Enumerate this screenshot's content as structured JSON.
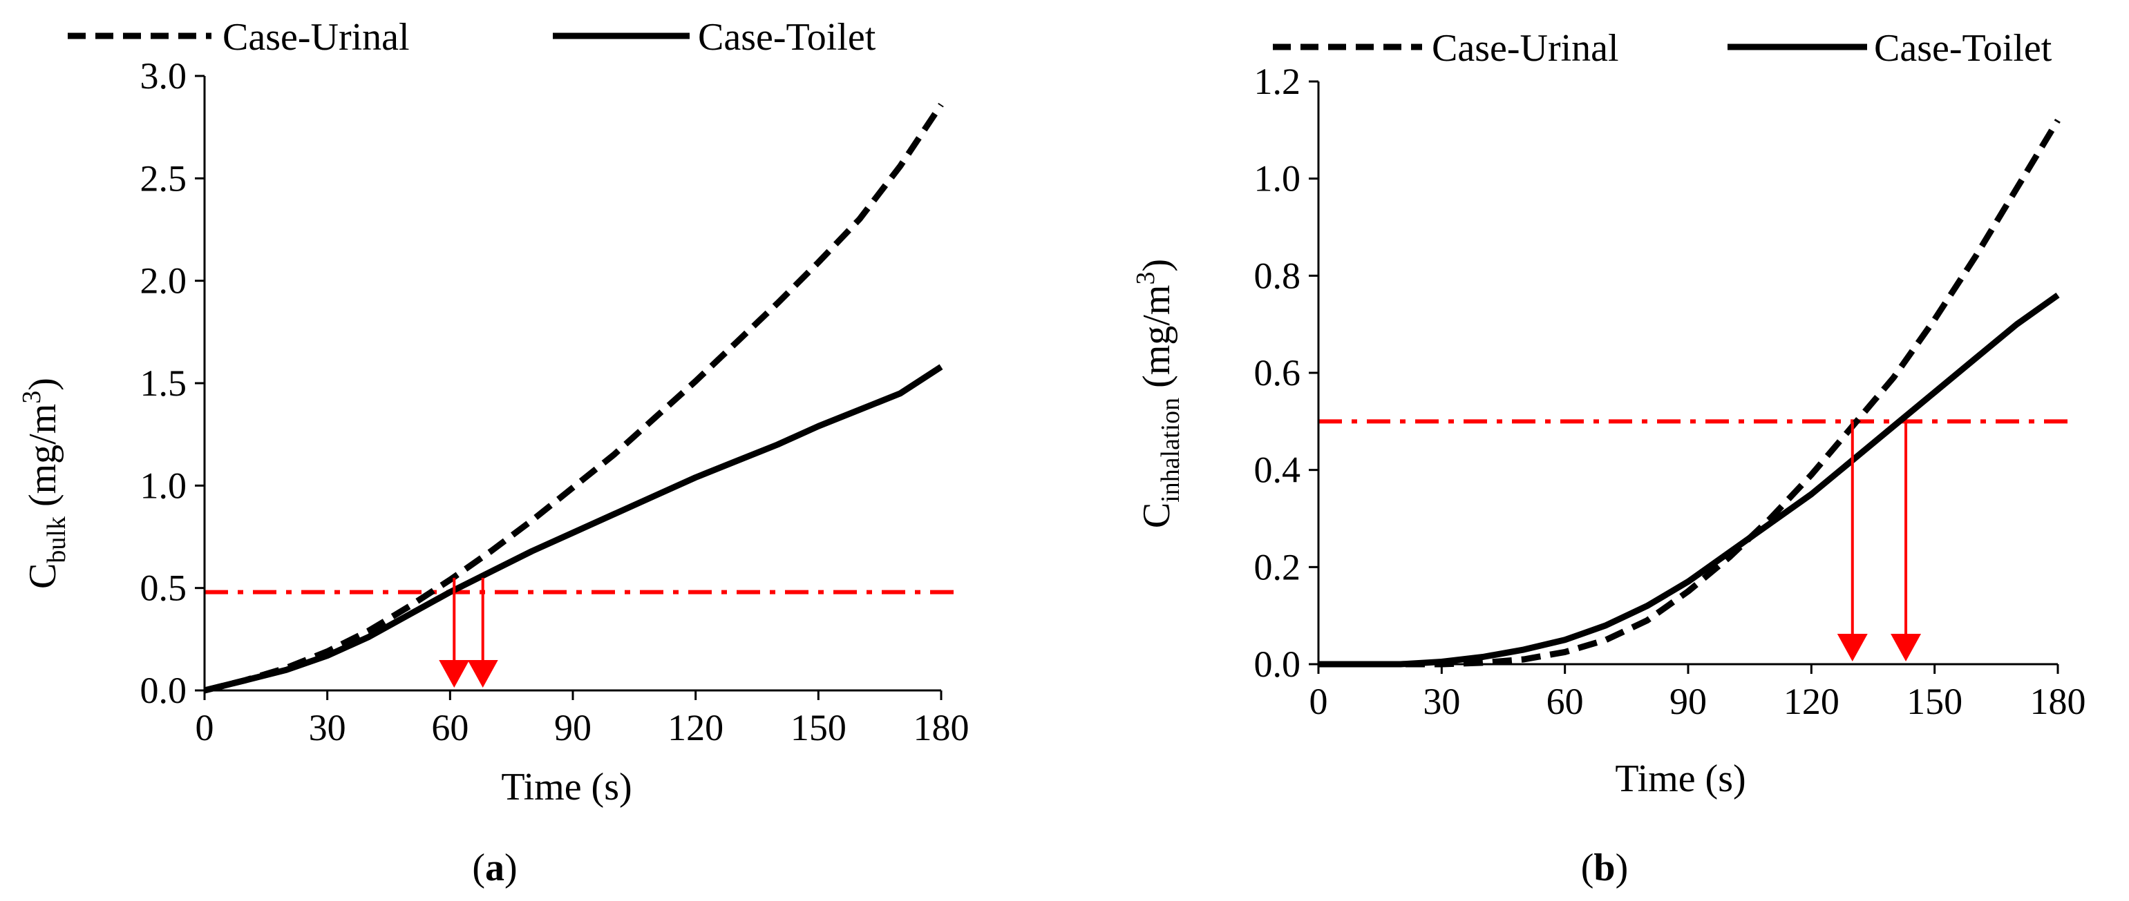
{
  "chart_data": [
    {
      "type": "line",
      "panel_label": {
        "open": "(",
        "letter": "a",
        "close": ")"
      },
      "xlabel": "Time (s)",
      "ylabel": {
        "main": "C",
        "sub": "bulk",
        "unit_pre": " (mg/m",
        "sup": "3",
        "unit_post": ")"
      },
      "xlim": [
        0,
        180
      ],
      "ylim": [
        0,
        3.0
      ],
      "xticks": [
        0,
        30,
        60,
        90,
        120,
        150,
        180
      ],
      "yticks": [
        0.0,
        0.5,
        1.0,
        1.5,
        2.0,
        2.5,
        3.0
      ],
      "ytick_decimals": 1,
      "grid": false,
      "legend_position": "top",
      "series": [
        {
          "name": "Case-Urinal",
          "style": "dashed",
          "color": "#000000",
          "x": [
            0,
            10,
            20,
            30,
            40,
            50,
            60,
            70,
            80,
            90,
            100,
            110,
            120,
            130,
            140,
            150,
            160,
            170,
            180
          ],
          "y": [
            0.0,
            0.05,
            0.11,
            0.19,
            0.29,
            0.41,
            0.54,
            0.68,
            0.83,
            0.99,
            1.15,
            1.33,
            1.51,
            1.7,
            1.89,
            2.09,
            2.3,
            2.56,
            2.86
          ]
        },
        {
          "name": "Case-Toilet",
          "style": "solid",
          "color": "#000000",
          "x": [
            0,
            10,
            20,
            30,
            40,
            50,
            60,
            70,
            80,
            90,
            100,
            110,
            120,
            130,
            140,
            150,
            160,
            170,
            180
          ],
          "y": [
            0.0,
            0.05,
            0.1,
            0.17,
            0.26,
            0.37,
            0.48,
            0.58,
            0.68,
            0.77,
            0.86,
            0.95,
            1.04,
            1.12,
            1.2,
            1.29,
            1.37,
            1.45,
            1.58
          ]
        }
      ],
      "threshold": {
        "y": 0.48,
        "color": "#ff0000",
        "style": "dash-dot"
      },
      "arrows": {
        "color": "#ff0000",
        "x": [
          61,
          68
        ],
        "from_y": 0.55,
        "to_y": 0.0
      }
    },
    {
      "type": "line",
      "panel_label": {
        "open": "(",
        "letter": "b",
        "close": ")"
      },
      "xlabel": "Time (s)",
      "ylabel": {
        "main": "C",
        "sub": "inhalation",
        "unit_pre": " (mg/m",
        "sup": "3",
        "unit_post": ")"
      },
      "xlim": [
        0,
        180
      ],
      "ylim": [
        0,
        1.2
      ],
      "xticks": [
        0,
        30,
        60,
        90,
        120,
        150,
        180
      ],
      "yticks": [
        0.0,
        0.2,
        0.4,
        0.6,
        0.8,
        1.0,
        1.2
      ],
      "ytick_decimals": 1,
      "grid": false,
      "legend_position": "top",
      "series": [
        {
          "name": "Case-Urinal",
          "style": "dashed",
          "color": "#000000",
          "x": [
            0,
            30,
            40,
            50,
            60,
            70,
            80,
            90,
            100,
            110,
            120,
            130,
            140,
            150,
            160,
            170,
            180
          ],
          "y": [
            0.0,
            0.0,
            0.003,
            0.01,
            0.025,
            0.05,
            0.09,
            0.15,
            0.22,
            0.3,
            0.39,
            0.49,
            0.59,
            0.71,
            0.84,
            0.98,
            1.12
          ]
        },
        {
          "name": "Case-Toilet",
          "style": "solid",
          "color": "#000000",
          "x": [
            0,
            20,
            30,
            40,
            50,
            60,
            70,
            80,
            90,
            100,
            110,
            120,
            130,
            140,
            150,
            160,
            170,
            180
          ],
          "y": [
            0.0,
            0.0,
            0.005,
            0.015,
            0.03,
            0.05,
            0.08,
            0.12,
            0.17,
            0.23,
            0.29,
            0.35,
            0.42,
            0.49,
            0.56,
            0.63,
            0.7,
            0.76
          ]
        }
      ],
      "threshold": {
        "y": 0.5,
        "color": "#ff0000",
        "style": "dash-dot"
      },
      "arrows": {
        "color": "#ff0000",
        "x": [
          130,
          143
        ],
        "from_y": 0.5,
        "to_y": 0.0
      }
    }
  ]
}
